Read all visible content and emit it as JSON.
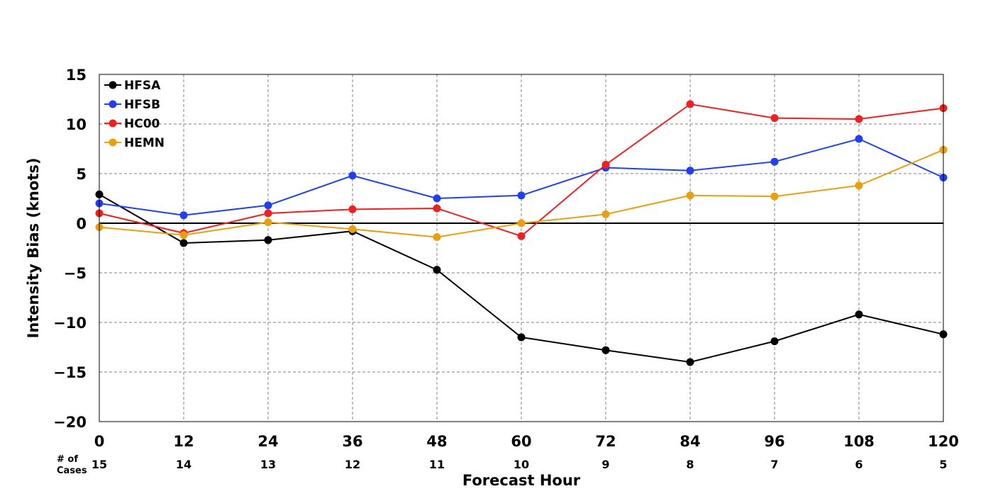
{
  "chart_data": {
    "type": "line",
    "xlabel": "Forecast Hour",
    "ylabel": "Intensity Bias (knots)",
    "x": [
      0,
      12,
      24,
      36,
      48,
      60,
      72,
      84,
      96,
      108,
      120
    ],
    "xlim": [
      0,
      120
    ],
    "ylim": [
      -20,
      15
    ],
    "yticks": [
      15,
      10,
      5,
      0,
      -5,
      -10,
      -15,
      -20
    ],
    "grid": true,
    "zero_line": true,
    "legend_position": "top-left",
    "cases_title": [
      "# of",
      "Cases"
    ],
    "cases": [
      15,
      14,
      13,
      12,
      11,
      10,
      9,
      8,
      7,
      6,
      5
    ],
    "series": [
      {
        "name": "HFSA",
        "color": "#000000",
        "values": [
          2.9,
          -2.0,
          -1.7,
          -0.8,
          -4.7,
          -11.5,
          -12.8,
          -14.0,
          -11.9,
          -9.2,
          -11.2
        ]
      },
      {
        "name": "HFSB",
        "color": "#2040f0",
        "values": [
          2.0,
          0.8,
          1.8,
          4.8,
          2.5,
          2.8,
          5.6,
          5.3,
          6.2,
          8.5,
          4.6
        ]
      },
      {
        "name": "HC00",
        "color": "#f02020",
        "values": [
          1.0,
          -1.0,
          1.0,
          1.4,
          1.5,
          -1.3,
          5.9,
          12.0,
          10.6,
          10.5,
          11.6
        ]
      },
      {
        "name": "HEMN",
        "color": "#e8a010",
        "values": [
          -0.4,
          -1.2,
          0.1,
          -0.6,
          -1.4,
          0.0,
          0.9,
          2.8,
          2.7,
          3.8,
          7.4
        ]
      }
    ]
  }
}
